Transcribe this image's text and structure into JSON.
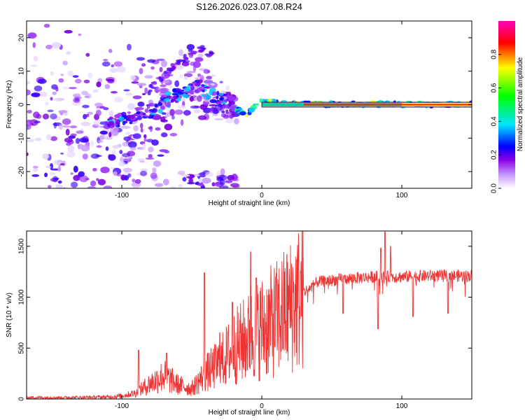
{
  "title": "S126.2026.023.07.08.R24",
  "chart_data": [
    {
      "type": "heatmap",
      "name": "spectrogram",
      "xlabel": "Height of straight line (km)",
      "ylabel": "Frequency (Hz)",
      "xlim": [
        -168,
        150
      ],
      "ylim": [
        -25,
        25
      ],
      "x_ticks": [
        -100,
        0,
        100
      ],
      "x_tick_labels": [
        "-100",
        "0",
        "100"
      ],
      "y_ticks": [
        -20,
        -10,
        0,
        10,
        20
      ],
      "y_tick_labels": [
        "-20",
        "-10",
        "0",
        "10",
        "20"
      ],
      "ridge": {
        "x": [
          -168,
          -150,
          -130,
          -110,
          -95,
          -85,
          -75,
          -65,
          -55,
          -45,
          -38,
          -32,
          -25,
          -20,
          -15,
          -10,
          -5,
          0,
          10,
          30,
          60,
          90,
          120,
          150
        ],
        "y": [
          -11,
          -10,
          -8,
          -6,
          -4,
          -3,
          -1,
          2,
          4,
          6,
          3,
          2,
          1,
          -1,
          -2,
          -3,
          0,
          1,
          0.5,
          0.3,
          0,
          0.2,
          0,
          0
        ]
      },
      "colorbar": {
        "label": "Normalized spectral amplitude",
        "range": [
          0,
          1
        ],
        "ticks": [
          0.0,
          0.2,
          0.4,
          0.6,
          0.8
        ],
        "tick_labels": [
          "0.0",
          "0.2",
          "0.4",
          "0.6",
          "0.8"
        ],
        "colormap": [
          "#ffffff",
          "#8a00e6",
          "#0000ff",
          "#00e5ff",
          "#00ff00",
          "#ffff00",
          "#ff0000",
          "#ff00c0"
        ]
      }
    },
    {
      "type": "line",
      "name": "snr",
      "xlabel": "Height of straight line (km)",
      "ylabel": "SNR (10 * v/v)",
      "xlim": [
        -168,
        150
      ],
      "ylim": [
        0,
        1650
      ],
      "x_ticks": [
        -100,
        0,
        100
      ],
      "x_tick_labels": [
        "-100",
        "0",
        "100"
      ],
      "y_ticks": [
        0,
        500,
        1000,
        1500
      ],
      "y_tick_labels": [
        "0",
        "500",
        "1000",
        "1500"
      ],
      "color": "#ee3333",
      "envelope": {
        "x": [
          -168,
          -140,
          -110,
          -100,
          -90,
          -80,
          -70,
          -60,
          -50,
          -40,
          -30,
          -20,
          -10,
          0,
          10,
          20,
          30,
          40,
          60,
          80,
          100,
          120,
          150
        ],
        "y": [
          15,
          15,
          20,
          30,
          60,
          150,
          230,
          140,
          100,
          250,
          350,
          500,
          600,
          700,
          780,
          900,
          1050,
          1150,
          1180,
          1200,
          1200,
          1210,
          1210
        ]
      },
      "spikes": [
        {
          "x": -88,
          "y": 480
        },
        {
          "x": -68,
          "y": 450
        },
        {
          "x": -41,
          "y": 1240
        },
        {
          "x": -30,
          "y": 650
        },
        {
          "x": -21,
          "y": 950
        },
        {
          "x": -8,
          "y": 1445
        },
        {
          "x": -4,
          "y": 1190
        },
        {
          "x": 85,
          "y": 1480
        },
        {
          "x": 88,
          "y": 1640
        },
        {
          "x": 92,
          "y": 1500
        }
      ],
      "dips": [
        {
          "x": 58,
          "y": 840
        },
        {
          "x": 83,
          "y": 690
        },
        {
          "x": 108,
          "y": 810
        },
        {
          "x": 133,
          "y": 840
        }
      ]
    }
  ]
}
